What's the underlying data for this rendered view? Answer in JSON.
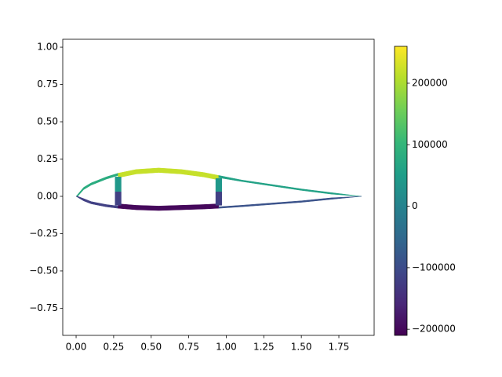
{
  "chart_data": {
    "type": "patch",
    "xlim": [
      -0.089,
      1.985
    ],
    "ylim": [
      -0.932,
      1.053
    ],
    "xticks": [
      {
        "value": 0,
        "label": "0.00"
      },
      {
        "value": 0.25,
        "label": "0.25"
      },
      {
        "value": 0.5,
        "label": "0.50"
      },
      {
        "value": 0.75,
        "label": "0.75"
      },
      {
        "value": 1,
        "label": "1.00"
      },
      {
        "value": 1.25,
        "label": "1.25"
      },
      {
        "value": 1.5,
        "label": "1.50"
      },
      {
        "value": 1.75,
        "label": "1.75"
      }
    ],
    "yticks": [
      {
        "value": -0.75,
        "label": "−0.75"
      },
      {
        "value": -0.5,
        "label": "−0.50"
      },
      {
        "value": -0.25,
        "label": "−0.25"
      },
      {
        "value": 0,
        "label": "0.00"
      },
      {
        "value": 0.25,
        "label": "0.25"
      },
      {
        "value": 0.5,
        "label": "0.50"
      },
      {
        "value": 0.75,
        "label": "0.75"
      },
      {
        "value": 1,
        "label": "1.00"
      }
    ],
    "clim": [
      -210000,
      260000
    ],
    "cticks": [
      {
        "value": -200000,
        "label": "−200000"
      },
      {
        "value": -100000,
        "label": "−100000"
      },
      0,
      100000,
      200000
    ],
    "colormap": [
      "#440154",
      "#482878",
      "#3e4989",
      "#31688e",
      "#26828e",
      "#1f9e89",
      "#35b779",
      "#6ece58",
      "#b5de2b",
      "#fde725"
    ],
    "patches": [
      {
        "x": [
          0,
          0.05,
          0.1,
          0.2,
          0.28,
          0.28,
          0.2,
          0.1,
          0.05,
          0.01
        ],
        "y": [
          0,
          0.06,
          0.09,
          0.13,
          0.155,
          0.14,
          0.115,
          0.075,
          0.045,
          0
        ],
        "value": 80000
      },
      {
        "x": [
          0.28,
          0.4,
          0.55,
          0.7,
          0.85,
          0.95,
          0.95,
          0.85,
          0.7,
          0.55,
          0.4,
          0.28
        ],
        "y": [
          0.155,
          0.18,
          0.19,
          0.18,
          0.16,
          0.14,
          0.11,
          0.13,
          0.15,
          0.16,
          0.15,
          0.125
        ],
        "value": 220000
      },
      {
        "x": [
          0.95,
          1.1,
          1.3,
          1.5,
          1.7,
          1.9,
          1.7,
          1.5,
          1.3,
          1.1,
          0.95
        ],
        "y": [
          0.14,
          0.11,
          0.08,
          0.05,
          0.025,
          0,
          0.015,
          0.04,
          0.07,
          0.1,
          0.125
        ],
        "value": 60000
      },
      {
        "x": [
          0,
          0.05,
          0.1,
          0.2,
          0.28,
          0.28,
          0.2,
          0.1,
          0.05,
          0.01
        ],
        "y": [
          0,
          -0.03,
          -0.05,
          -0.07,
          -0.08,
          -0.065,
          -0.055,
          -0.035,
          -0.015,
          0
        ],
        "value": -120000
      },
      {
        "x": [
          0.28,
          0.4,
          0.55,
          0.7,
          0.85,
          0.95,
          0.95,
          0.85,
          0.7,
          0.55,
          0.4,
          0.28
        ],
        "y": [
          -0.08,
          -0.09,
          -0.095,
          -0.09,
          -0.085,
          -0.08,
          -0.05,
          -0.055,
          -0.06,
          -0.065,
          -0.06,
          -0.05
        ],
        "value": -200000
      },
      {
        "x": [
          0.95,
          1.1,
          1.3,
          1.5,
          1.7,
          1.9,
          1.7,
          1.5,
          1.3,
          1.1,
          0.95
        ],
        "y": [
          -0.08,
          -0.07,
          -0.055,
          -0.04,
          -0.02,
          0,
          -0.01,
          -0.03,
          -0.045,
          -0.06,
          -0.07
        ],
        "value": -90000
      },
      {
        "x": [
          0.26,
          0.3,
          0.3,
          0.26
        ],
        "y": [
          0.13,
          0.13,
          0.03,
          0.03
        ],
        "value": 40000
      },
      {
        "x": [
          0.26,
          0.3,
          0.3,
          0.26
        ],
        "y": [
          0.03,
          0.03,
          -0.06,
          -0.06
        ],
        "value": -120000
      },
      {
        "x": [
          0.93,
          0.97,
          0.97,
          0.93
        ],
        "y": [
          0.12,
          0.12,
          0.03,
          0.03
        ],
        "value": 40000
      },
      {
        "x": [
          0.93,
          0.97,
          0.97,
          0.93
        ],
        "y": [
          0.03,
          0.03,
          -0.06,
          -0.06
        ],
        "value": -120000
      }
    ]
  }
}
